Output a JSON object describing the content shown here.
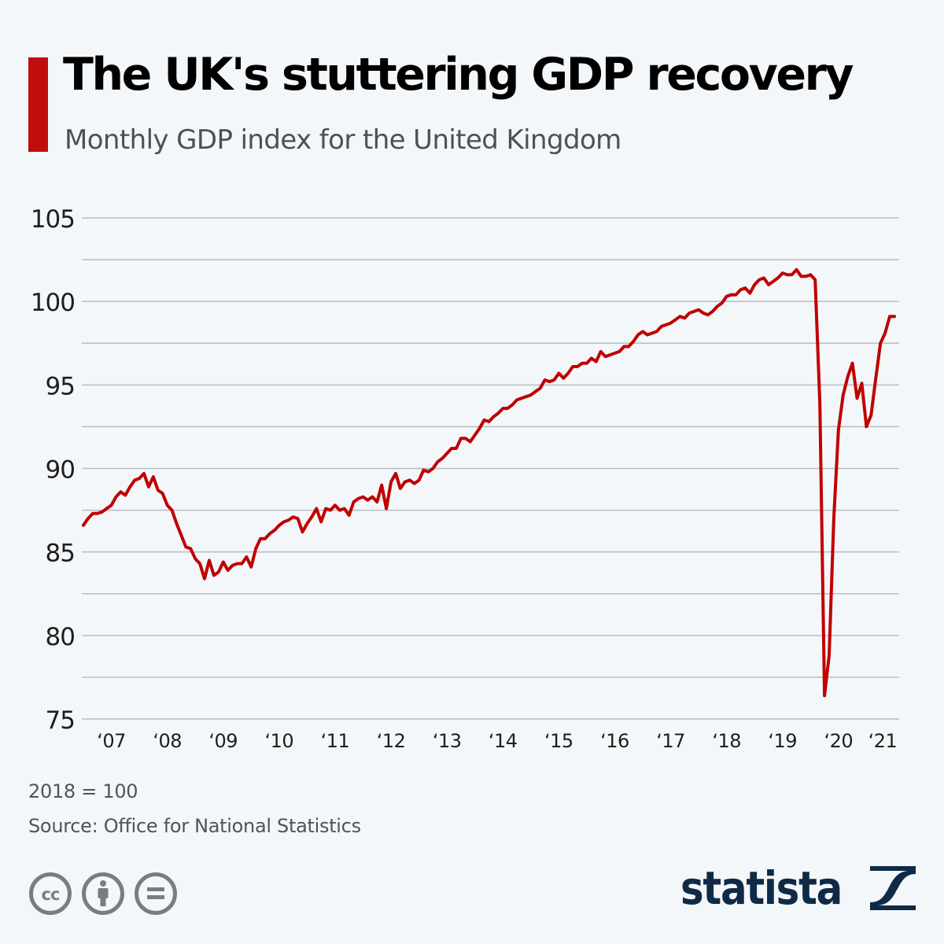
{
  "header": {
    "title": "The UK's stuttering GDP recovery",
    "subtitle": "Monthly GDP index for the United Kingdom"
  },
  "colors": {
    "accent": "#c00d0d",
    "line": "#c00000",
    "grid": "#b8bcc0",
    "text": "#1e1e1e",
    "footer_text": "#505357",
    "brand": "#0e2a47",
    "icon_gray": "#7a7c7e",
    "background": "#f4f7fa"
  },
  "footer": {
    "base_note": "2018 = 100",
    "source": "Source: Office for National Statistics",
    "license_icons": [
      "cc-icon",
      "attribution-icon",
      "no-derivatives-icon"
    ],
    "brand_name": "statista"
  },
  "chart_data": {
    "type": "line",
    "title": "The UK's stuttering GDP recovery",
    "subtitle": "Monthly GDP index for the United Kingdom",
    "xlabel": "",
    "ylabel": "",
    "ylim": [
      75,
      105
    ],
    "yticks": [
      75,
      80,
      85,
      90,
      95,
      100,
      105
    ],
    "ytick_labels": [
      "75",
      "80",
      "85",
      "90",
      "95",
      "100",
      "105"
    ],
    "minor_gridlines": [
      77.5,
      82.5,
      87.5,
      92.5,
      97.5,
      102.5
    ],
    "grid": true,
    "legend": "none",
    "x_start": "2007-01",
    "x_frequency": "monthly",
    "xtick_labels": [
      "‘07",
      "‘08",
      "‘09",
      "‘10",
      "‘11",
      "‘12",
      "‘13",
      "‘14",
      "‘15",
      "‘16",
      "‘17",
      "‘18",
      "‘19",
      "‘20",
      "‘21"
    ],
    "series": [
      {
        "name": "Monthly GDP index (2018=100)",
        "values": [
          86.6,
          87.0,
          87.3,
          87.3,
          87.4,
          87.6,
          87.8,
          88.3,
          88.6,
          88.4,
          88.9,
          89.3,
          89.4,
          89.7,
          88.9,
          89.5,
          88.7,
          88.5,
          87.8,
          87.5,
          86.7,
          86.0,
          85.3,
          85.2,
          84.6,
          84.3,
          83.4,
          84.5,
          83.6,
          83.8,
          84.4,
          83.9,
          84.2,
          84.3,
          84.3,
          84.7,
          84.1,
          85.2,
          85.8,
          85.8,
          86.1,
          86.3,
          86.6,
          86.8,
          86.9,
          87.1,
          87.0,
          86.2,
          86.7,
          87.1,
          87.6,
          86.8,
          87.6,
          87.5,
          87.8,
          87.5,
          87.6,
          87.2,
          88.0,
          88.2,
          88.3,
          88.1,
          88.3,
          88.0,
          89.0,
          87.6,
          89.2,
          89.7,
          88.8,
          89.2,
          89.3,
          89.1,
          89.3,
          89.9,
          89.8,
          90.0,
          90.4,
          90.6,
          90.9,
          91.2,
          91.2,
          91.8,
          91.8,
          91.6,
          92.0,
          92.4,
          92.9,
          92.8,
          93.1,
          93.3,
          93.6,
          93.6,
          93.8,
          94.1,
          94.2,
          94.3,
          94.4,
          94.6,
          94.8,
          95.3,
          95.2,
          95.3,
          95.7,
          95.4,
          95.7,
          96.1,
          96.1,
          96.3,
          96.3,
          96.6,
          96.4,
          97.0,
          96.7,
          96.8,
          96.9,
          97.0,
          97.3,
          97.3,
          97.6,
          98.0,
          98.2,
          98.0,
          98.1,
          98.2,
          98.5,
          98.6,
          98.7,
          98.9,
          99.1,
          99.0,
          99.3,
          99.4,
          99.5,
          99.3,
          99.2,
          99.4,
          99.7,
          99.9,
          100.3,
          100.4,
          100.4,
          100.7,
          100.8,
          100.5,
          101.0,
          101.3,
          101.4,
          101.0,
          101.2,
          101.4,
          101.7,
          101.6,
          101.6,
          101.9,
          101.5,
          101.5,
          101.6,
          101.3,
          93.9,
          76.4,
          78.8,
          87.0,
          92.3,
          94.4,
          95.5,
          96.3,
          94.2,
          95.1,
          92.5,
          93.2,
          95.4,
          97.5,
          98.1,
          99.1,
          99.1
        ]
      }
    ]
  }
}
